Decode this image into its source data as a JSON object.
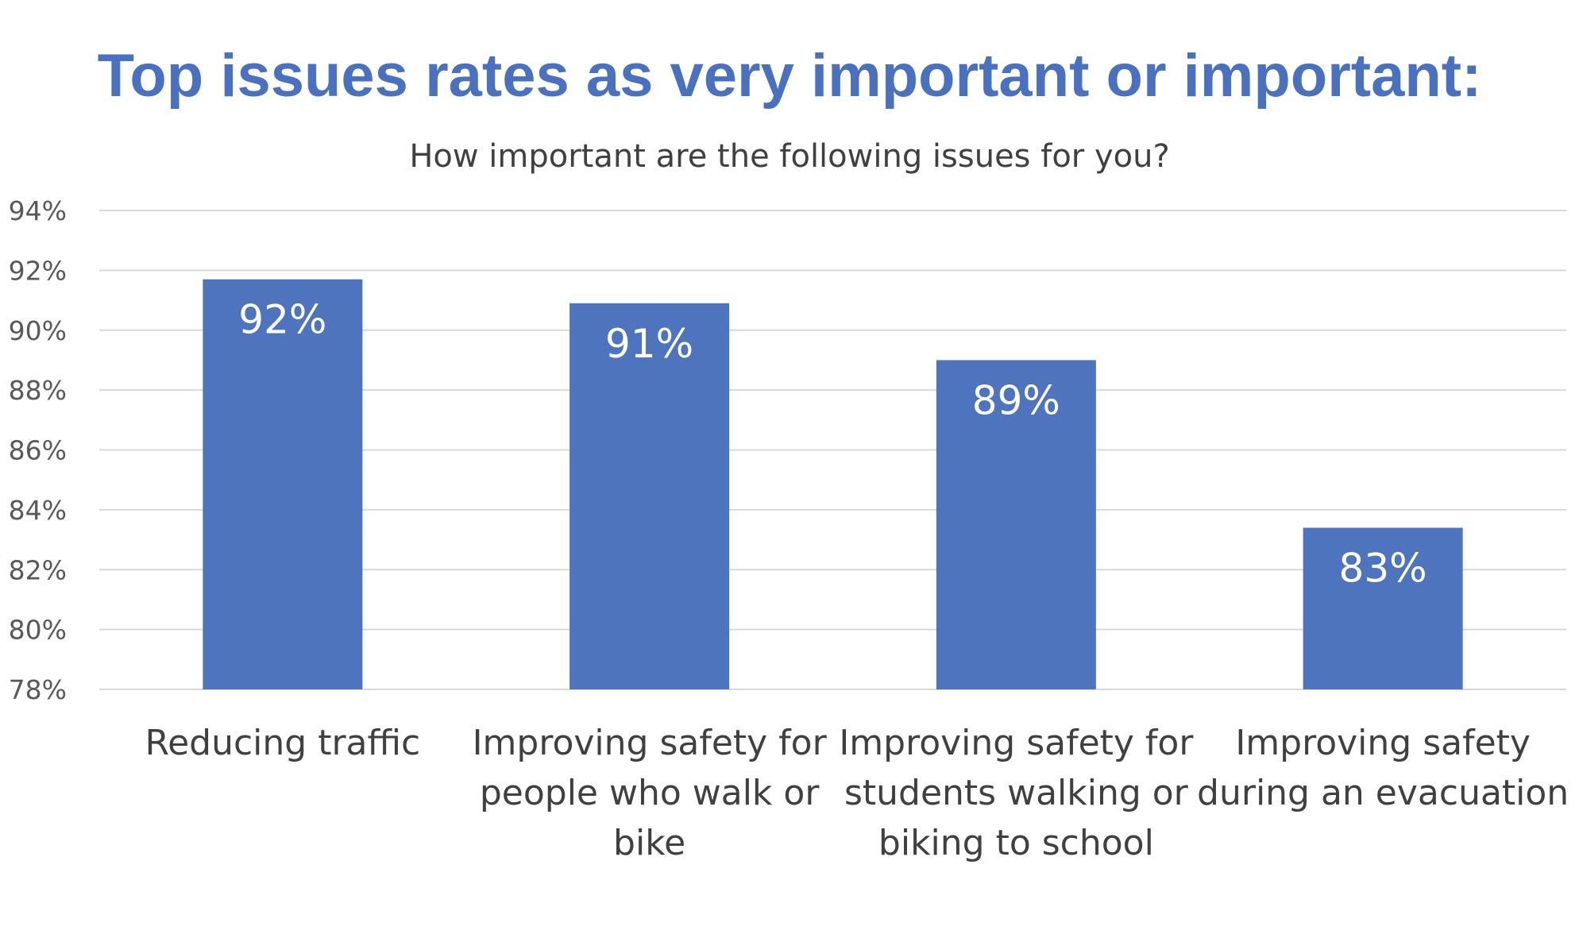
{
  "chart_data": {
    "type": "bar",
    "title": "Top issues rates as very important or important:",
    "subtitle": "How important are the following issues for you?",
    "categories": [
      "Reducing traffic",
      "Improving safety for people who walk or bike",
      "Improving safety for students walking or biking to school",
      "Improving safety during an evacuation"
    ],
    "category_lines": [
      [
        "Reducing traffic"
      ],
      [
        "Improving safety for",
        "people who walk or",
        "bike"
      ],
      [
        "Improving safety for",
        "students walking or",
        "biking to school"
      ],
      [
        "Improving safety",
        "during an evacuation"
      ]
    ],
    "values": [
      91.7,
      90.9,
      89.0,
      83.4
    ],
    "data_labels": [
      "92%",
      "91%",
      "89%",
      "83%"
    ],
    "ylim": [
      78,
      94
    ],
    "yticks": [
      78,
      80,
      82,
      84,
      86,
      88,
      90,
      92,
      94
    ],
    "ytick_labels": [
      "78%",
      "80%",
      "82%",
      "84%",
      "86%",
      "88%",
      "90%",
      "92%",
      "94%"
    ],
    "grid": true,
    "legend": "none",
    "bar_color": "#4f74be",
    "title_color": "#4a71bf"
  }
}
